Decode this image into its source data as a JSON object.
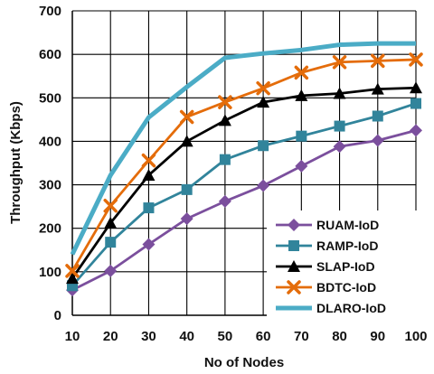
{
  "chart_data": {
    "type": "line",
    "title": "",
    "xlabel": "No of Nodes",
    "ylabel": "Throughput (Kbps)",
    "x": [
      10,
      20,
      30,
      40,
      50,
      60,
      70,
      80,
      90,
      100
    ],
    "xlim": [
      10,
      100
    ],
    "ylim": [
      0,
      700
    ],
    "yticks": [
      0,
      100,
      200,
      300,
      400,
      500,
      600,
      700
    ],
    "grid": true,
    "legend_position": "bottom-right",
    "series": [
      {
        "name": "RUAM-IoD",
        "color": "#7b4f9d",
        "marker": "diamond",
        "values": [
          58,
          102,
          163,
          222,
          262,
          298,
          343,
          388,
          402,
          425
        ]
      },
      {
        "name": "RAMP-IoD",
        "color": "#31849b",
        "marker": "square",
        "values": [
          68,
          168,
          247,
          289,
          358,
          390,
          412,
          435,
          458,
          487
        ]
      },
      {
        "name": "SLAP-IoD",
        "color": "#000000",
        "marker": "triangle",
        "values": [
          85,
          212,
          322,
          400,
          448,
          490,
          505,
          510,
          520,
          523
        ]
      },
      {
        "name": "BDTC-IoD",
        "color": "#e46c0a",
        "marker": "x",
        "values": [
          102,
          252,
          356,
          456,
          490,
          522,
          558,
          582,
          585,
          588
        ]
      },
      {
        "name": "DLARO-IoD",
        "color": "#4bacc6",
        "marker": "none",
        "values": [
          140,
          322,
          455,
          525,
          592,
          602,
          610,
          622,
          625,
          625
        ]
      }
    ]
  }
}
